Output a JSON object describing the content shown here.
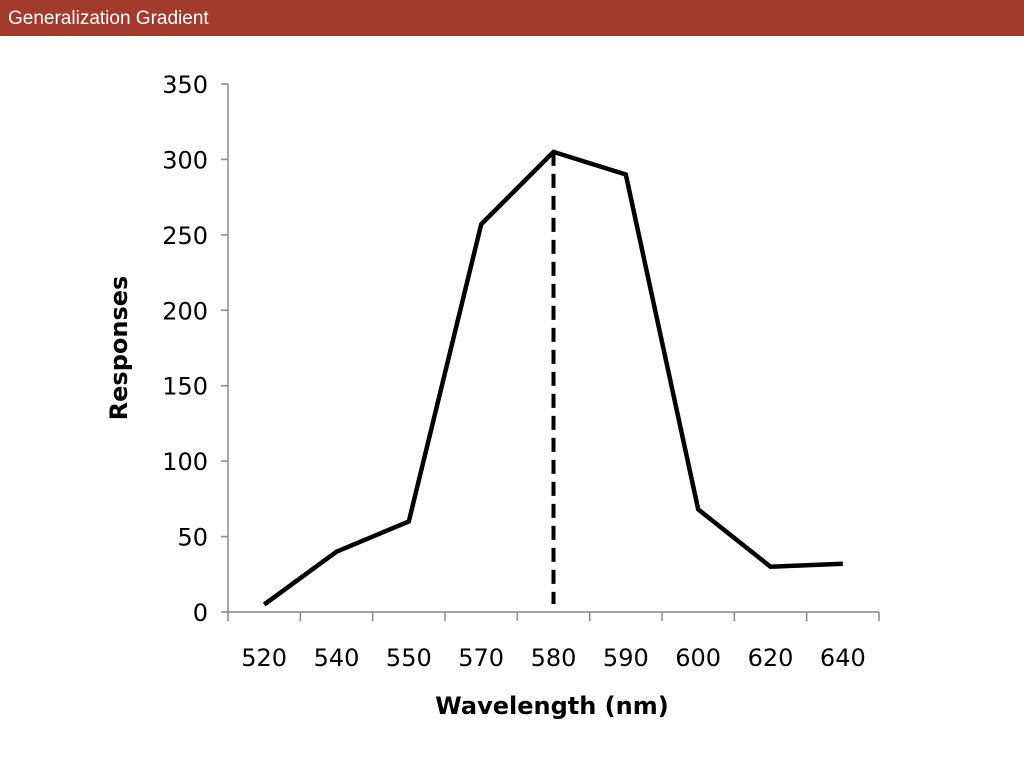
{
  "header": {
    "title": "Generalization Gradient",
    "background_color": "#a23b2c",
    "text_color": "#ffffff"
  },
  "chart_data": {
    "type": "line",
    "categories": [
      "520",
      "540",
      "550",
      "570",
      "580",
      "590",
      "600",
      "620",
      "640"
    ],
    "series": [
      {
        "values": [
          5,
          40,
          60,
          257,
          305,
          290,
          68,
          30,
          32
        ]
      }
    ],
    "peak_marker": {
      "category": "580",
      "value": 305,
      "style": "dashed vertical line"
    },
    "xlabel": "Wavelength (nm)",
    "ylabel": "Responses",
    "ylim": [
      0,
      350
    ],
    "yticks": [
      0,
      50,
      100,
      150,
      200,
      250,
      300,
      350
    ],
    "grid": false,
    "line_color": "#000000"
  }
}
